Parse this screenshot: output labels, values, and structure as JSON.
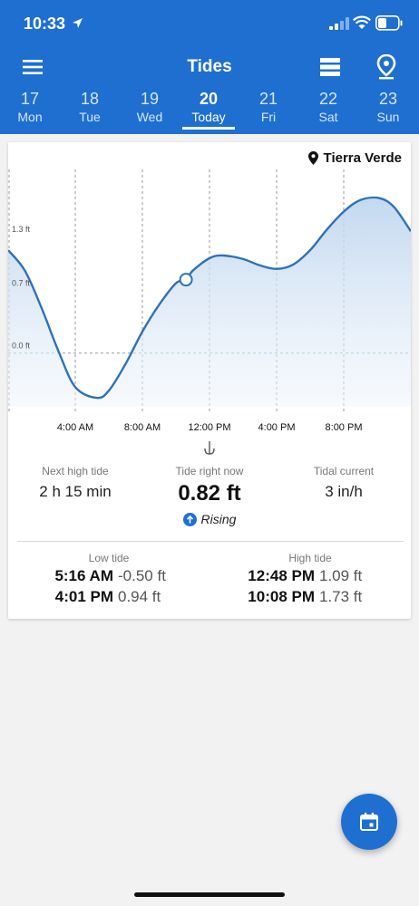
{
  "status": {
    "time": "10:33"
  },
  "toolbar": {
    "title": "Tides"
  },
  "days": [
    {
      "num": "17",
      "name": "Mon"
    },
    {
      "num": "18",
      "name": "Tue"
    },
    {
      "num": "19",
      "name": "Wed"
    },
    {
      "num": "20",
      "name": "Today",
      "active": true
    },
    {
      "num": "21",
      "name": "Fri"
    },
    {
      "num": "22",
      "name": "Sat"
    },
    {
      "num": "23",
      "name": "Sun"
    }
  ],
  "location": "Tierra Verde",
  "chart_data": {
    "type": "area",
    "y_tick_labels": [
      "1.3 ft",
      "0.7 ft",
      "0.0 ft"
    ],
    "y_ticks": [
      1.3,
      0.7,
      0.0
    ],
    "x_tick_labels": [
      "4:00 AM",
      "8:00 AM",
      "12:00 PM",
      "4:00 PM",
      "8:00 PM"
    ],
    "x_ticks_hours": [
      4,
      8,
      12,
      16,
      20
    ],
    "xlim_hours": [
      0,
      24
    ],
    "ylim_ft": [
      -0.6,
      1.95
    ],
    "series": [
      {
        "x_hours": [
          0,
          1,
          2,
          3,
          4,
          5.27,
          6,
          7,
          8,
          9,
          10,
          10.6,
          11,
          12,
          12.8,
          14,
          15,
          16,
          17,
          18,
          19,
          20,
          21,
          22.13,
          23,
          24
        ],
        "y_ft": [
          1.15,
          0.92,
          0.5,
          0.02,
          -0.38,
          -0.5,
          -0.42,
          -0.12,
          0.24,
          0.54,
          0.78,
          0.82,
          0.92,
          1.06,
          1.09,
          1.05,
          0.98,
          0.94,
          0.99,
          1.15,
          1.38,
          1.58,
          1.71,
          1.73,
          1.63,
          1.36
        ]
      }
    ],
    "current_point": {
      "x_hours": 10.6,
      "y_ft": 0.82
    },
    "grid": true
  },
  "stats": {
    "next_high_label": "Next high tide",
    "next_high_value": "2 h 15 min",
    "now_label": "Tide right now",
    "now_value": "0.82 ft",
    "trend": "Rising",
    "current_label": "Tidal current",
    "current_value": "3 in/h"
  },
  "tides": {
    "low_label": "Low tide",
    "high_label": "High tide",
    "low": [
      {
        "time": "5:16 AM",
        "height": "-0.50 ft"
      },
      {
        "time": "4:01 PM",
        "height": "0.94 ft"
      }
    ],
    "high": [
      {
        "time": "12:48 PM",
        "height": "1.09 ft"
      },
      {
        "time": "10:08 PM",
        "height": "1.73 ft"
      }
    ]
  },
  "colors": {
    "brand": "#1f6fd1",
    "curve": "#2e72b8"
  }
}
